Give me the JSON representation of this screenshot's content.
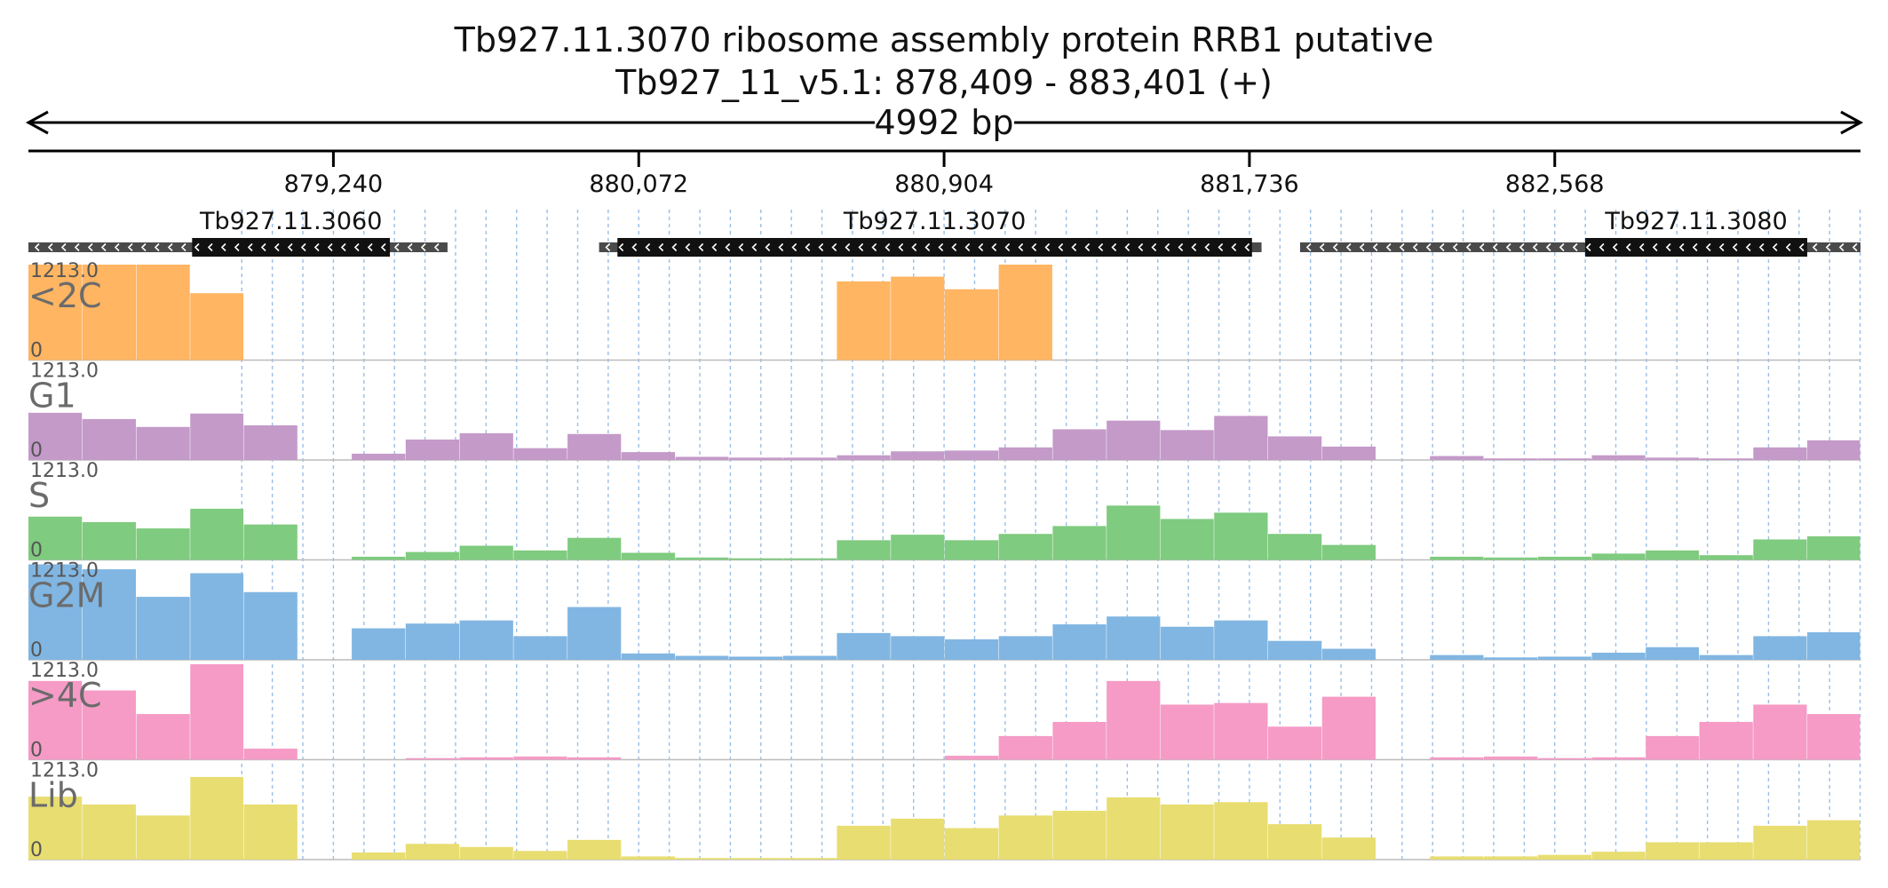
{
  "chart_data": {
    "type": "area",
    "title": "Tb927.11.3070  ribosome assembly protein RRB1  putative",
    "subtitle": "Tb927_11_v5.1: 878,409 - 883,401 (+)",
    "span_label": "4992 bp",
    "region": {
      "chrom": "Tb927_11_v5.1",
      "start": 878409,
      "end": 883401,
      "strand": "+"
    },
    "ticks": [
      {
        "pos": 879240,
        "label": "879,240"
      },
      {
        "pos": 880072,
        "label": "880,072"
      },
      {
        "pos": 880904,
        "label": "880,904"
      },
      {
        "pos": 881736,
        "label": "881,736"
      },
      {
        "pos": 882568,
        "label": "882,568"
      }
    ],
    "genes": [
      {
        "name": "Tb927.11.3060",
        "strand": "-",
        "start": 878409,
        "end": 879551,
        "cds_start": 878855,
        "cds_end": 879394
      },
      {
        "name": "Tb927.11.3070",
        "strand": "-",
        "start": 879964,
        "end": 881769,
        "cds_start": 880014,
        "cds_end": 881743
      },
      {
        "name": "Tb927.11.3080",
        "strand": "-",
        "start": 881874,
        "end": 883401,
        "cds_start": 882651,
        "cds_end": 883256
      }
    ],
    "y_scale": {
      "max_label": "1213.0",
      "min_label": "0",
      "ylim": [
        0,
        1213
      ]
    },
    "bins": {
      "x": [
        878409,
        878556,
        878703,
        878850,
        878996,
        879143,
        879290,
        879437,
        879584,
        879731,
        879878,
        880025,
        880172,
        880318,
        880465,
        880612,
        880759,
        880906,
        881053,
        881200,
        881347,
        881494,
        881640,
        881787,
        881934,
        882081,
        882228,
        882375,
        882522,
        882669,
        882816,
        882962,
        883109,
        883256,
        883401
      ]
    },
    "series": [
      {
        "name": "<2C",
        "color": "#ffb562",
        "values": [
          1213,
          1213,
          1213,
          850,
          0,
          0,
          0,
          0,
          0,
          0,
          0,
          0,
          0,
          0,
          0,
          1000,
          1060,
          900,
          1213,
          0,
          0,
          0,
          0,
          0,
          0,
          0,
          0,
          0,
          0,
          0,
          0,
          0,
          0,
          0,
          0
        ]
      },
      {
        "name": "G1",
        "color": "#c49ac9",
        "values": [
          600,
          520,
          420,
          590,
          440,
          0,
          80,
          260,
          340,
          150,
          330,
          100,
          40,
          30,
          30,
          60,
          110,
          120,
          160,
          390,
          500,
          380,
          560,
          300,
          170,
          0,
          50,
          20,
          20,
          60,
          30,
          20,
          160,
          250,
          310
        ]
      },
      {
        "name": "S",
        "color": "#7fcb7f",
        "values": [
          550,
          480,
          400,
          650,
          450,
          0,
          40,
          100,
          180,
          120,
          280,
          90,
          30,
          20,
          20,
          250,
          320,
          250,
          330,
          430,
          690,
          520,
          600,
          330,
          190,
          0,
          40,
          30,
          40,
          80,
          120,
          60,
          260,
          300,
          330
        ]
      },
      {
        "name": "G2M",
        "color": "#81b6e2",
        "values": [
          1213,
          1150,
          800,
          1100,
          860,
          0,
          400,
          460,
          500,
          300,
          670,
          80,
          50,
          40,
          50,
          340,
          300,
          260,
          300,
          450,
          550,
          420,
          500,
          240,
          140,
          0,
          60,
          30,
          40,
          90,
          160,
          60,
          300,
          350,
          370
        ]
      },
      {
        "name": ">4C",
        "color": "#f59bc6",
        "values": [
          1000,
          880,
          580,
          1213,
          140,
          0,
          0,
          20,
          30,
          40,
          30,
          0,
          0,
          0,
          0,
          0,
          0,
          50,
          300,
          480,
          1000,
          700,
          720,
          420,
          800,
          0,
          30,
          40,
          20,
          30,
          300,
          480,
          700,
          580,
          550
        ]
      },
      {
        "name": "Lib",
        "color": "#e8dd71",
        "values": [
          800,
          700,
          560,
          1050,
          700,
          0,
          90,
          200,
          160,
          110,
          250,
          40,
          20,
          20,
          20,
          430,
          520,
          400,
          560,
          620,
          790,
          700,
          730,
          450,
          280,
          0,
          40,
          40,
          60,
          100,
          220,
          220,
          430,
          500,
          520
        ]
      }
    ],
    "grid": true,
    "legend": "none"
  }
}
